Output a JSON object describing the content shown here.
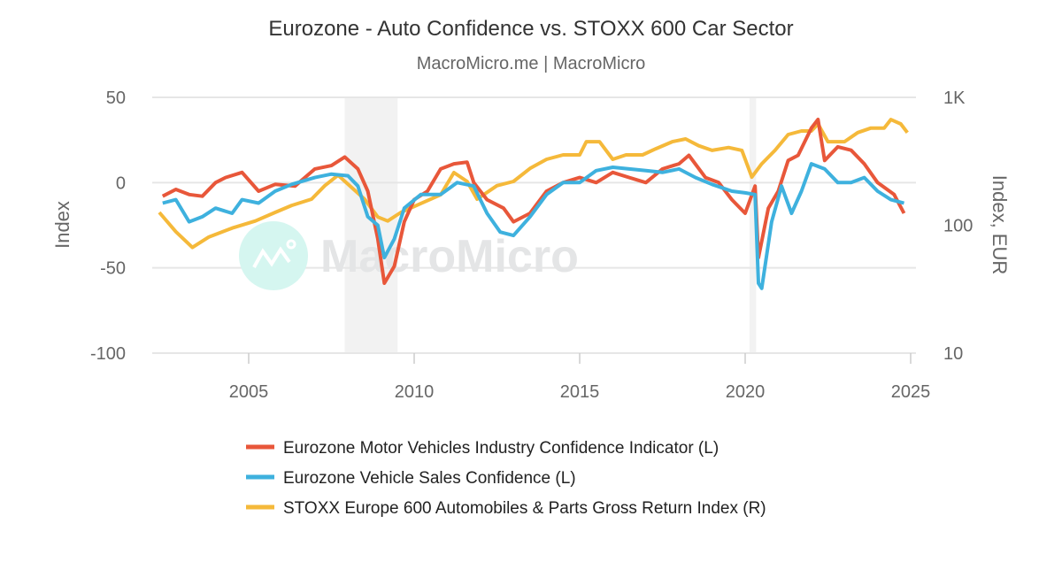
{
  "chart_data": {
    "type": "line",
    "title": "Eurozone - Auto Confidence vs. STOXX 600 Car Sector",
    "subtitle": "MacroMicro.me | MacroMicro",
    "watermark": "MacroMicro",
    "ylabel_left": "Index",
    "ylabel_right": "Index, EUR",
    "ylim_left": [
      -100,
      50
    ],
    "ylim_right": [
      10,
      1000
    ],
    "right_scale": "log",
    "xlim": [
      2002.1,
      2025.1
    ],
    "grid": true,
    "legend_position": "bottom",
    "x_ticks": [
      "2005",
      "2010",
      "2015",
      "2020",
      "2025"
    ],
    "y_ticks_left": [
      "50",
      "0",
      "-50",
      "-100"
    ],
    "y_ticks_right": [
      "1K",
      "100",
      "10"
    ],
    "shaded_periods": [
      [
        2007.9,
        2009.5
      ],
      [
        2020.13,
        2020.33
      ]
    ],
    "shade_color": "#f2f2f2",
    "series": [
      {
        "name": "Eurozone Motor Vehicles Industry Confidence Indicator (L)",
        "axis": "left",
        "color": "#e8573a",
        "points": [
          [
            2002.4,
            -8
          ],
          [
            2002.8,
            -4
          ],
          [
            2003.2,
            -7
          ],
          [
            2003.6,
            -8
          ],
          [
            2004.0,
            0
          ],
          [
            2004.3,
            3
          ],
          [
            2004.8,
            6
          ],
          [
            2005.3,
            -5
          ],
          [
            2005.8,
            -1
          ],
          [
            2006.4,
            -2
          ],
          [
            2007.0,
            8
          ],
          [
            2007.5,
            10
          ],
          [
            2007.9,
            15
          ],
          [
            2008.3,
            8
          ],
          [
            2008.6,
            -5
          ],
          [
            2008.9,
            -33
          ],
          [
            2009.1,
            -59
          ],
          [
            2009.4,
            -49
          ],
          [
            2009.7,
            -23
          ],
          [
            2010.0,
            -10
          ],
          [
            2010.4,
            -5
          ],
          [
            2010.8,
            8
          ],
          [
            2011.2,
            11
          ],
          [
            2011.6,
            12
          ],
          [
            2011.8,
            0
          ],
          [
            2012.2,
            -10
          ],
          [
            2012.7,
            -15
          ],
          [
            2013.0,
            -23
          ],
          [
            2013.5,
            -18
          ],
          [
            2014.0,
            -5
          ],
          [
            2014.5,
            0
          ],
          [
            2015.0,
            3
          ],
          [
            2015.5,
            0
          ],
          [
            2016.0,
            6
          ],
          [
            2016.5,
            3
          ],
          [
            2017.0,
            0
          ],
          [
            2017.5,
            8
          ],
          [
            2018.0,
            11
          ],
          [
            2018.3,
            16
          ],
          [
            2018.8,
            3
          ],
          [
            2019.2,
            0
          ],
          [
            2019.6,
            -10
          ],
          [
            2020.0,
            -18
          ],
          [
            2020.3,
            -2
          ],
          [
            2020.4,
            -44
          ],
          [
            2020.7,
            -15
          ],
          [
            2021.0,
            -5
          ],
          [
            2021.3,
            13
          ],
          [
            2021.6,
            16
          ],
          [
            2022.0,
            32
          ],
          [
            2022.2,
            37
          ],
          [
            2022.4,
            13
          ],
          [
            2022.8,
            21
          ],
          [
            2023.2,
            19
          ],
          [
            2023.6,
            11
          ],
          [
            2024.0,
            0
          ],
          [
            2024.5,
            -7
          ],
          [
            2024.8,
            -18
          ]
        ]
      },
      {
        "name": "Eurozone Vehicle Sales Confidence (L)",
        "axis": "left",
        "color": "#3eb1de",
        "points": [
          [
            2002.4,
            -12
          ],
          [
            2002.8,
            -10
          ],
          [
            2003.2,
            -23
          ],
          [
            2003.6,
            -20
          ],
          [
            2004.0,
            -15
          ],
          [
            2004.5,
            -18
          ],
          [
            2004.8,
            -10
          ],
          [
            2005.3,
            -12
          ],
          [
            2005.8,
            -5
          ],
          [
            2006.3,
            -1
          ],
          [
            2007.0,
            3
          ],
          [
            2007.5,
            5
          ],
          [
            2008.0,
            4
          ],
          [
            2008.3,
            -2
          ],
          [
            2008.6,
            -20
          ],
          [
            2008.9,
            -25
          ],
          [
            2009.1,
            -44
          ],
          [
            2009.4,
            -33
          ],
          [
            2009.7,
            -15
          ],
          [
            2010.2,
            -7
          ],
          [
            2010.8,
            -7
          ],
          [
            2011.3,
            0
          ],
          [
            2011.8,
            -2
          ],
          [
            2012.2,
            -18
          ],
          [
            2012.6,
            -29
          ],
          [
            2013.0,
            -31
          ],
          [
            2013.5,
            -20
          ],
          [
            2014.0,
            -7
          ],
          [
            2014.5,
            0
          ],
          [
            2015.0,
            0
          ],
          [
            2015.5,
            7
          ],
          [
            2016.0,
            9
          ],
          [
            2016.5,
            8
          ],
          [
            2017.0,
            7
          ],
          [
            2017.5,
            6
          ],
          [
            2018.0,
            8
          ],
          [
            2018.5,
            3
          ],
          [
            2019.0,
            -1
          ],
          [
            2019.6,
            -5
          ],
          [
            2020.0,
            -6
          ],
          [
            2020.3,
            -7
          ],
          [
            2020.4,
            -59
          ],
          [
            2020.5,
            -62
          ],
          [
            2020.8,
            -23
          ],
          [
            2021.1,
            -2
          ],
          [
            2021.4,
            -18
          ],
          [
            2021.7,
            -5
          ],
          [
            2022.0,
            11
          ],
          [
            2022.4,
            8
          ],
          [
            2022.8,
            0
          ],
          [
            2023.2,
            0
          ],
          [
            2023.6,
            3
          ],
          [
            2024.0,
            -5
          ],
          [
            2024.4,
            -10
          ],
          [
            2024.8,
            -12
          ]
        ]
      },
      {
        "name": "STOXX Europe 600 Automobiles & Parts Gross Return Index (R)",
        "axis": "right",
        "color": "#f5b93a",
        "points": [
          [
            2002.3,
            126
          ],
          [
            2002.8,
            89
          ],
          [
            2003.3,
            67
          ],
          [
            2003.8,
            81
          ],
          [
            2004.5,
            95
          ],
          [
            2005.2,
            108
          ],
          [
            2005.8,
            126
          ],
          [
            2006.3,
            143
          ],
          [
            2006.9,
            160
          ],
          [
            2007.3,
            204
          ],
          [
            2007.7,
            246
          ],
          [
            2008.2,
            188
          ],
          [
            2008.5,
            160
          ],
          [
            2008.9,
            116
          ],
          [
            2009.2,
            108
          ],
          [
            2009.6,
            126
          ],
          [
            2010.2,
            148
          ],
          [
            2010.8,
            173
          ],
          [
            2011.2,
            258
          ],
          [
            2011.6,
            220
          ],
          [
            2011.9,
            160
          ],
          [
            2012.5,
            204
          ],
          [
            2013.0,
            220
          ],
          [
            2013.5,
            278
          ],
          [
            2014.0,
            328
          ],
          [
            2014.5,
            355
          ],
          [
            2015.0,
            355
          ],
          [
            2015.2,
            450
          ],
          [
            2015.6,
            450
          ],
          [
            2016.0,
            328
          ],
          [
            2016.4,
            355
          ],
          [
            2016.9,
            355
          ],
          [
            2017.3,
            396
          ],
          [
            2017.8,
            450
          ],
          [
            2018.2,
            473
          ],
          [
            2018.6,
            418
          ],
          [
            2019.0,
            385
          ],
          [
            2019.5,
            405
          ],
          [
            2019.9,
            385
          ],
          [
            2020.2,
            238
          ],
          [
            2020.5,
            302
          ],
          [
            2020.9,
            385
          ],
          [
            2021.3,
            512
          ],
          [
            2021.7,
            546
          ],
          [
            2022.0,
            546
          ],
          [
            2022.2,
            620
          ],
          [
            2022.5,
            450
          ],
          [
            2023.0,
            450
          ],
          [
            2023.4,
            530
          ],
          [
            2023.8,
            575
          ],
          [
            2024.2,
            575
          ],
          [
            2024.4,
            670
          ],
          [
            2024.7,
            620
          ],
          [
            2024.9,
            530
          ]
        ]
      }
    ]
  }
}
